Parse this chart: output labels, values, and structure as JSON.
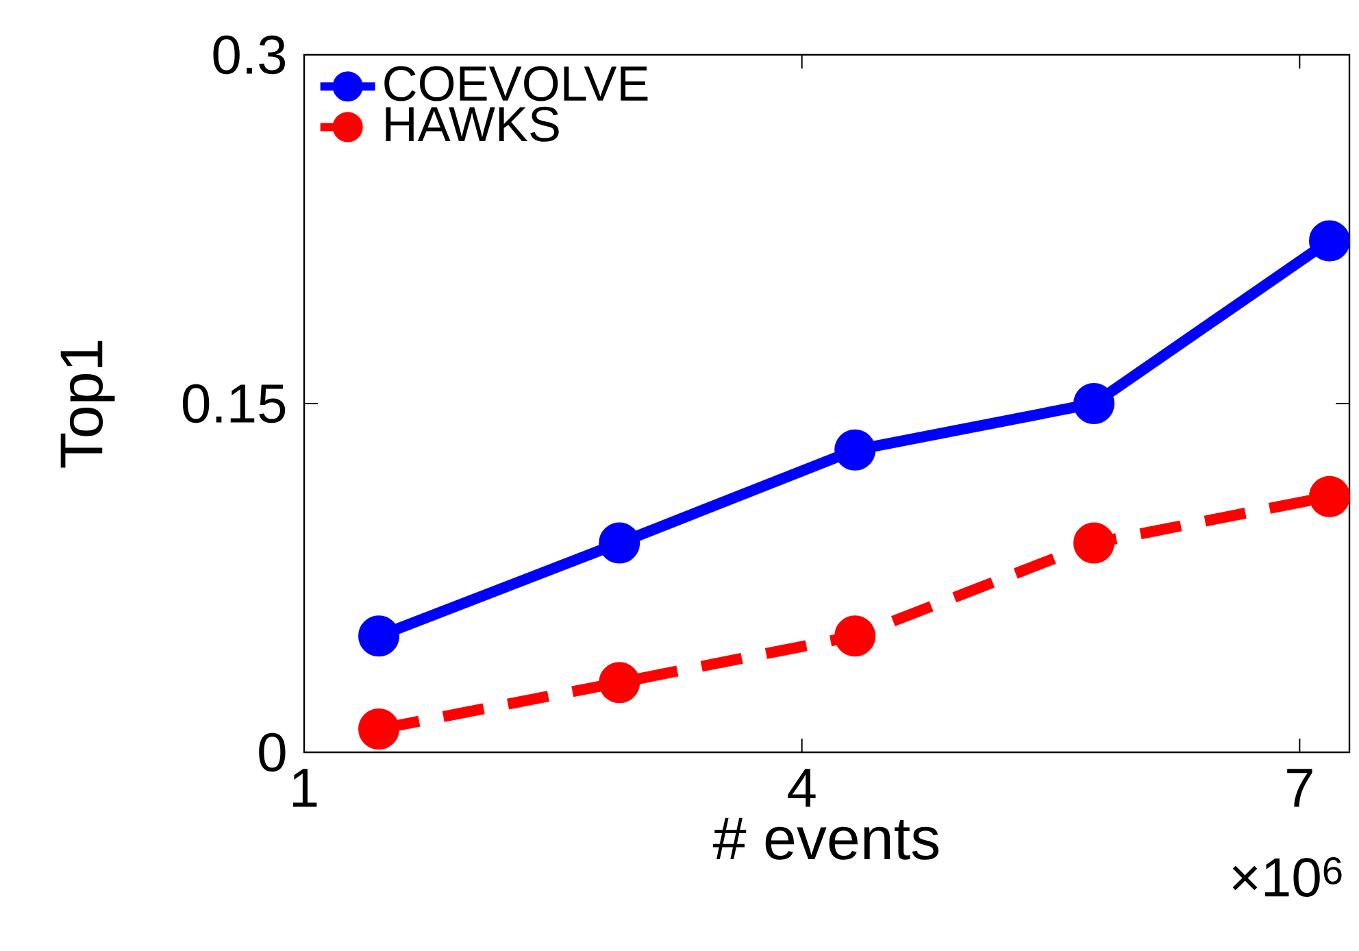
{
  "chart_data": {
    "type": "line",
    "xlabel": "# events",
    "ylabel": "Top1",
    "x": [
      1.45,
      2.9,
      4.32,
      5.76,
      7.18
    ],
    "series": [
      {
        "name": "COEVOLVE",
        "color": "#0000ff",
        "values": [
          0.05,
          0.09,
          0.13,
          0.15,
          0.22
        ],
        "line_style": "solid"
      },
      {
        "name": "HAWKS",
        "color": "#ff0000",
        "values": [
          0.01,
          0.03,
          0.05,
          0.09,
          0.11
        ],
        "line_style": "dashed"
      }
    ],
    "xlim": [
      1,
      7.3
    ],
    "ylim": [
      0,
      0.3
    ],
    "xticks": [
      1,
      4,
      7
    ],
    "yticks": [
      0,
      0.15,
      0.3
    ],
    "annotations": [
      "×10$^{6}$"
    ],
    "legend": "top left",
    "marker": "circle",
    "grid": false
  }
}
